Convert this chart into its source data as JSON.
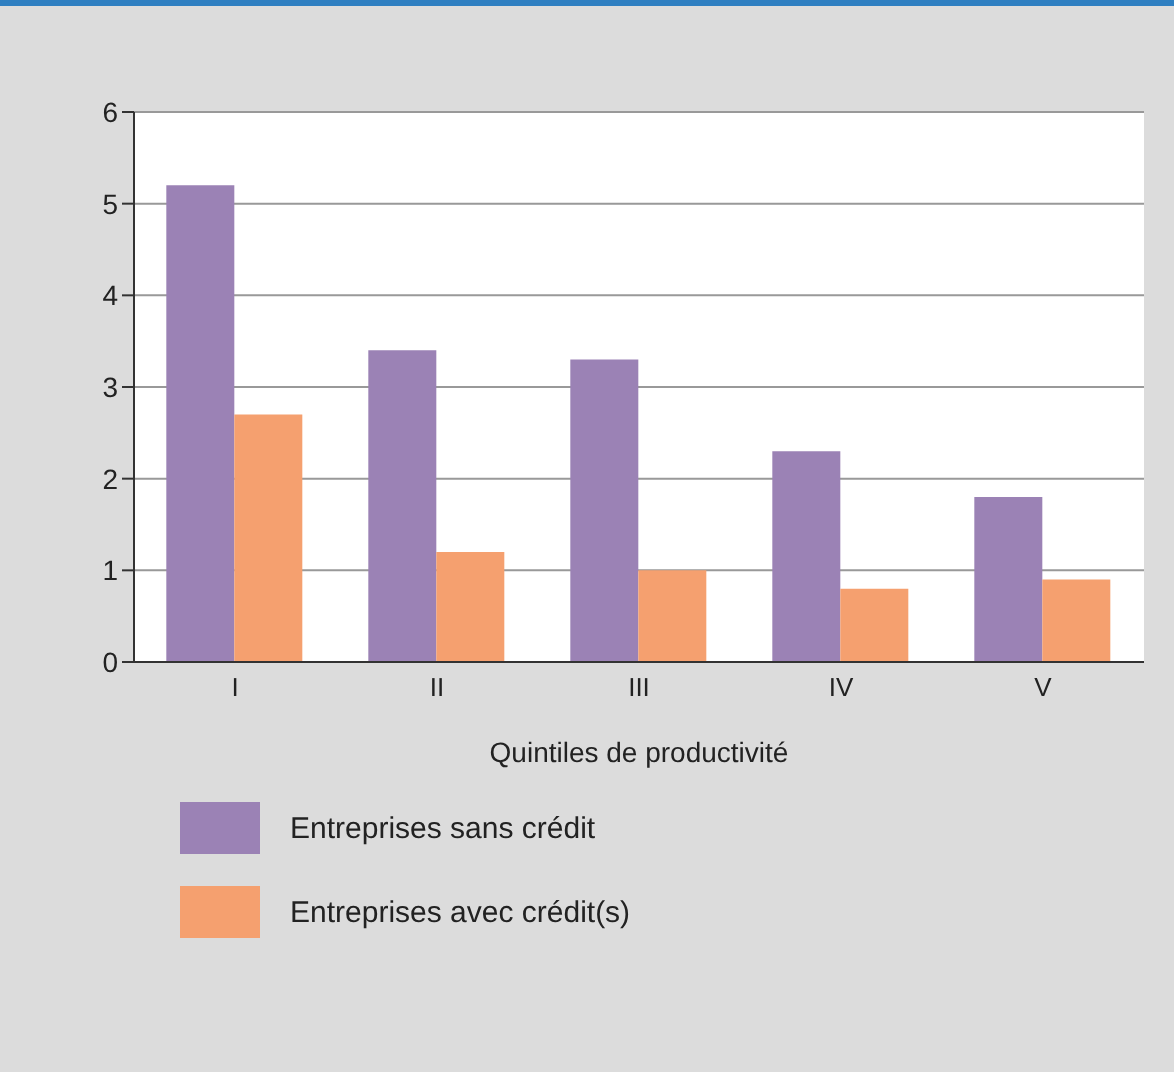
{
  "chart_data": {
    "type": "bar",
    "xlabel": "Quintiles de productivité",
    "categories": [
      "I",
      "II",
      "III",
      "IV",
      "V"
    ],
    "series": [
      {
        "name": "Entreprises sans crédit",
        "color": "#9b82b5",
        "values": [
          5.2,
          3.4,
          3.3,
          2.3,
          1.8
        ]
      },
      {
        "name": "Entreprises avec crédit(s)",
        "color": "#f5a06f",
        "values": [
          2.7,
          1.2,
          1.0,
          0.8,
          0.9
        ]
      }
    ],
    "ylim": [
      0,
      6
    ],
    "yticks": [
      0,
      1,
      2,
      3,
      4,
      5,
      6
    ],
    "grid": "y",
    "legend": "bottom"
  }
}
